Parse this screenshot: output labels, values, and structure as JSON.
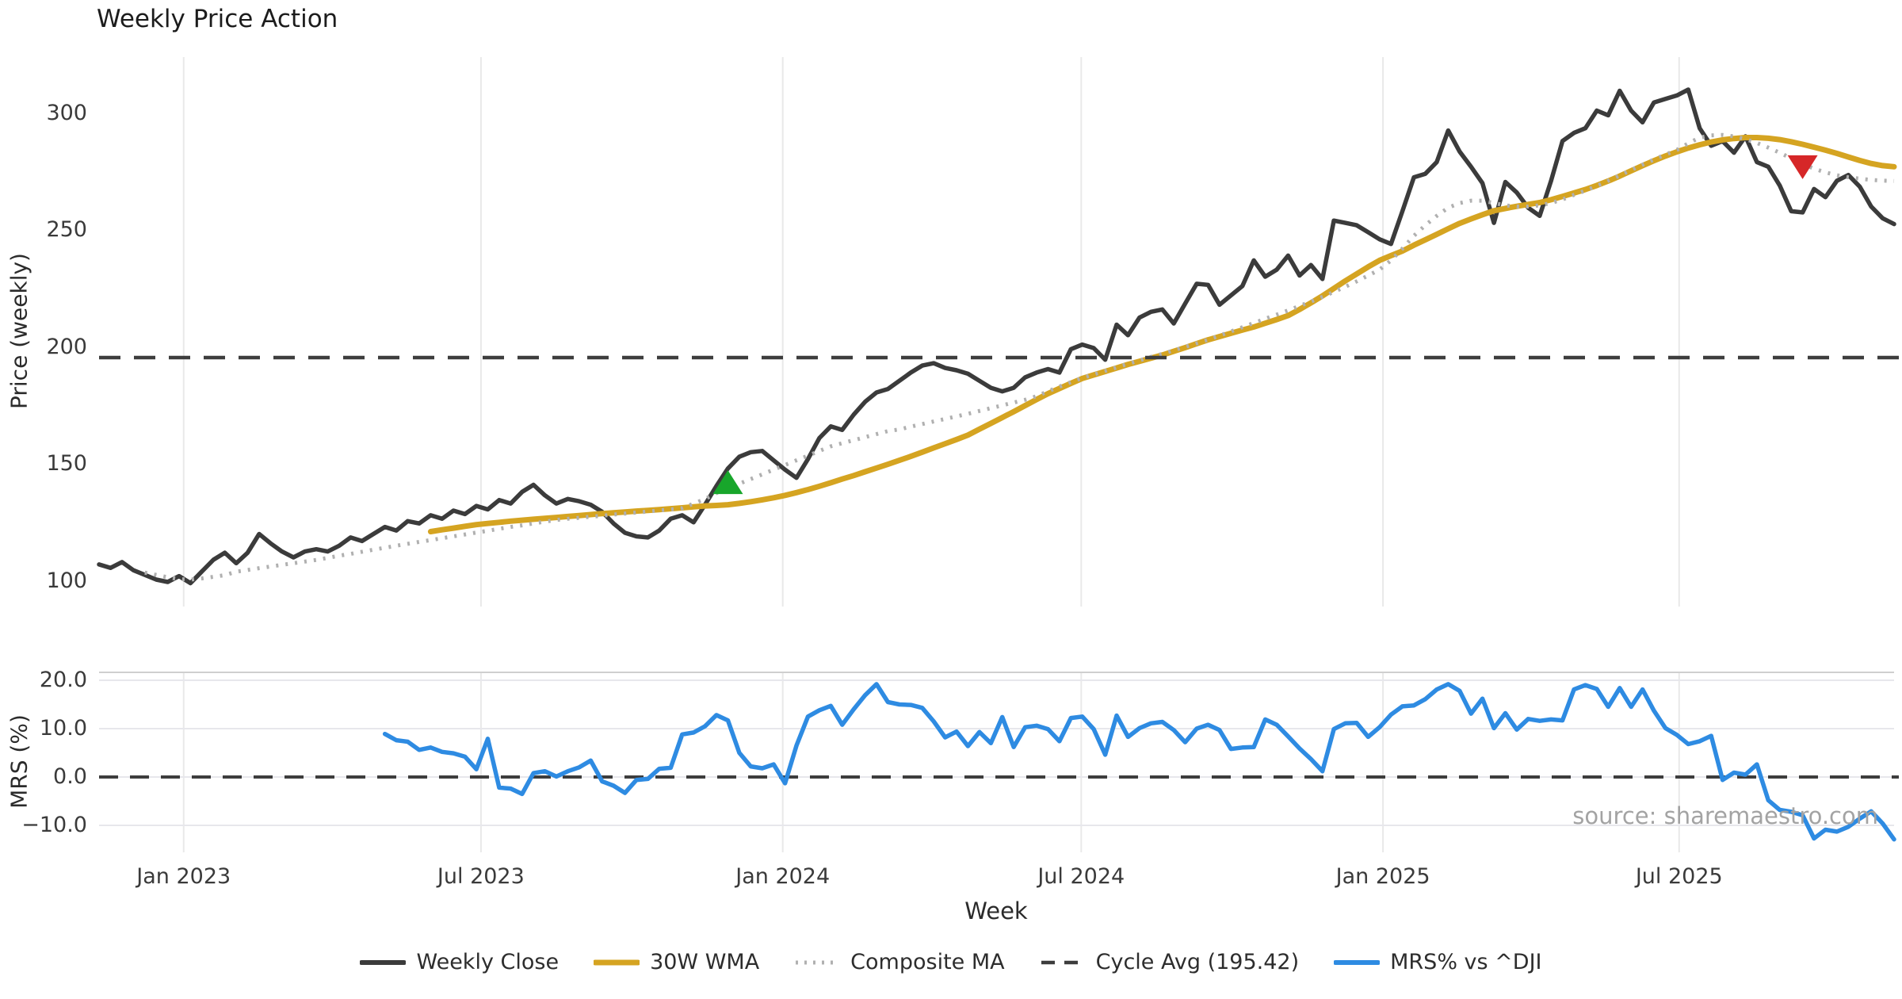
{
  "title": "Weekly Price Action",
  "source_note": "source: sharemaestro.com",
  "axes": {
    "price_ylabel": "Price (weekly)",
    "price_yticks": [
      "100",
      "150",
      "200",
      "250",
      "300"
    ],
    "mrs_ylabel": "MRS (%)",
    "mrs_yticks": [
      "−10.0",
      "0.0",
      "10.0",
      "20.0"
    ],
    "xlabel": "Week"
  },
  "legend": [
    {
      "label": "Weekly Close",
      "color": "#3b3b3b",
      "style": "solid",
      "width": 6
    },
    {
      "label": "30W WMA",
      "color": "#d5a421",
      "style": "solid",
      "width": 7
    },
    {
      "label": "Composite MA",
      "color": "#b0b0b0",
      "style": "dotted",
      "width": 5
    },
    {
      "label": "Cycle Avg (195.42)",
      "color": "#3d3d3d",
      "style": "dashed",
      "width": 4.5
    },
    {
      "label": "MRS% vs ^DJI",
      "color": "#2e8be2",
      "style": "solid",
      "width": 6
    }
  ],
  "chart_data": {
    "type": "line",
    "title": "Weekly Price Action",
    "xlabel": "Week",
    "x_unit": "week-index (0 = first plotted week, early Nov 2022)",
    "xticks": [
      {
        "label": "Jan 2023",
        "week": 7.4
      },
      {
        "label": "Jul 2023",
        "week": 33.4
      },
      {
        "label": "Jan 2024",
        "week": 59.8
      },
      {
        "label": "Jul 2024",
        "week": 85.9
      },
      {
        "label": "Jan 2025",
        "week": 112.3
      },
      {
        "label": "Jul 2025",
        "week": 138.2
      }
    ],
    "panels": [
      {
        "id": "price",
        "ylabel": "Price (weekly)",
        "yticks": [
          100,
          150,
          200,
          250,
          300
        ],
        "ylim": [
          89.5,
          323.5
        ],
        "grid": "vertical"
      },
      {
        "id": "mrs",
        "ylabel": "MRS (%)",
        "yticks": [
          -10,
          0,
          10,
          20
        ],
        "ylim": [
          -15.5,
          21.6
        ],
        "grid": "both",
        "zero_line_dashed": true
      }
    ],
    "cycle_avg": 195.42,
    "series": [
      {
        "name": "Weekly Close",
        "panel": 0,
        "color": "#3b3b3b",
        "style": "solid",
        "start_week": 0,
        "values": [
          107,
          105.5,
          108,
          104.5,
          102.5,
          100.5,
          99.5,
          102,
          99,
          104,
          109,
          112,
          107.5,
          112,
          120,
          116,
          112.5,
          110,
          112.5,
          113.5,
          112.5,
          115,
          118.5,
          117,
          120,
          123,
          121.5,
          125.5,
          124.5,
          128,
          126.5,
          130,
          128.5,
          132,
          130.5,
          134.5,
          133,
          138,
          141,
          136.5,
          133,
          135,
          134,
          132.5,
          129.5,
          124.5,
          120.5,
          119,
          118.5,
          121.5,
          126.5,
          128,
          125,
          132.5,
          140.5,
          148,
          153,
          155,
          155.5,
          151.5,
          147.5,
          144,
          152,
          161,
          166,
          164.5,
          171,
          176.5,
          180.5,
          182,
          185.5,
          189,
          192,
          193,
          191,
          190,
          188.5,
          185.5,
          182.5,
          181,
          182.5,
          187,
          189,
          190.5,
          189,
          199,
          201,
          199.5,
          194.5,
          209.5,
          205,
          212.5,
          215,
          216,
          210,
          218.5,
          227,
          226.5,
          218,
          222,
          226,
          237,
          230,
          233,
          239,
          230.5,
          235,
          229,
          254,
          253,
          252,
          249,
          246,
          244,
          258,
          272.5,
          274,
          279,
          292.5,
          283.5,
          277,
          270,
          253,
          270.5,
          266,
          259.5,
          256,
          271,
          288,
          291.5,
          293.5,
          301,
          299,
          309.5,
          301,
          296,
          304.5,
          306,
          307.5,
          310,
          293.5,
          286,
          288,
          283,
          290,
          279,
          277,
          269,
          258,
          257.5,
          267.5,
          264,
          271,
          273.5,
          268.5,
          260,
          255,
          252.5
        ]
      },
      {
        "name": "30W WMA",
        "panel": 0,
        "color": "#d5a421",
        "style": "solid",
        "start_week": 29,
        "values": [
          121,
          121.8,
          122.5,
          123.3,
          124,
          124.5,
          125,
          125.5,
          125.9,
          126.3,
          126.7,
          127.1,
          127.5,
          127.9,
          128.3,
          128.7,
          129.1,
          129.4,
          129.8,
          130.1,
          130.4,
          130.8,
          131.2,
          131.6,
          132,
          132.2,
          132.5,
          133.1,
          133.8,
          134.6,
          135.5,
          136.5,
          137.7,
          139,
          140.4,
          141.9,
          143.5,
          145,
          146.6,
          148.2,
          149.8,
          151.5,
          153.2,
          155,
          156.8,
          158.6,
          160.4,
          162.3,
          164.8,
          167.3,
          169.8,
          172.3,
          174.9,
          177.5,
          180,
          182.2,
          184.4,
          186.5,
          188,
          189.5,
          191,
          192.5,
          193.8,
          195.2,
          196.5,
          198.1,
          199.7,
          201.4,
          203,
          204.4,
          205.8,
          207.2,
          208.5,
          210.1,
          211.7,
          213.4,
          216,
          218.8,
          221.8,
          225,
          228.2,
          231.2,
          234.2,
          237,
          239,
          241,
          243.5,
          245.8,
          248.1,
          250.5,
          252.8,
          254.7,
          256.5,
          258.2,
          259.2,
          260.1,
          260.9,
          261.7,
          262.9,
          264.3,
          265.8,
          267.3,
          269,
          270.9,
          273,
          275.3,
          277.5,
          279.6,
          281.6,
          283.4,
          285,
          286.4,
          287.6,
          288.5,
          289.1,
          289.5,
          289.5,
          289.2,
          288.6,
          287.7,
          286.6,
          285.4,
          284.1,
          282.7,
          281.2,
          279.7,
          278.4,
          277.5,
          277
        ]
      },
      {
        "name": "Composite MA",
        "panel": 0,
        "color": "#b0b0b0",
        "style": "dotted",
        "start_week": 4,
        "values": [
          103.5,
          102.5,
          101.5,
          100.7,
          100.5,
          101,
          101.7,
          102.4,
          103.9,
          104.6,
          105.4,
          106.1,
          106.8,
          107.5,
          108.2,
          108.9,
          109.8,
          110.7,
          111.5,
          112.4,
          113.3,
          114.1,
          115,
          115.8,
          116.6,
          117.4,
          118.2,
          119,
          119.8,
          120.6,
          121.4,
          122.2,
          123,
          123.7,
          124.5,
          125.3,
          126,
          126.5,
          126.9,
          127.4,
          127.8,
          128.3,
          128.7,
          129.2,
          129.6,
          130.1,
          130.5,
          131,
          133,
          135,
          137.5,
          139.5,
          141.5,
          143.5,
          145.5,
          147.5,
          149.5,
          151.5,
          153.5,
          155.5,
          157.5,
          158.8,
          160.1,
          161.4,
          162.7,
          164,
          164.7,
          165.9,
          167,
          168.1,
          169.2,
          170.3,
          171.4,
          172.6,
          173.8,
          175,
          176.2,
          177.4,
          178.9,
          181,
          183,
          184.9,
          186.7,
          188.2,
          189.7,
          191.2,
          192.7,
          194.2,
          195.7,
          197,
          198.5,
          200,
          201.5,
          203,
          204.8,
          206.6,
          208.4,
          210.2,
          212,
          213.8,
          215.6,
          217.5,
          219.4,
          221.4,
          223.5,
          225.7,
          228,
          230.5,
          233,
          237,
          242,
          247.5,
          252,
          256,
          259.5,
          261.5,
          262.5,
          262.5,
          261.5,
          260.5,
          260,
          260,
          260.5,
          261.5,
          263,
          265,
          266.8,
          268.8,
          271,
          273.3,
          275.6,
          277.9,
          280.1,
          282.2,
          284.2,
          287,
          289.5,
          290.4,
          290.6,
          290,
          288.8,
          287.2,
          285.2,
          283,
          280.6,
          278.2,
          276.2,
          274.6,
          273.4,
          272.5,
          271.9,
          271.4,
          271.1,
          270.9
        ]
      },
      {
        "name": "Cycle Avg (195.42)",
        "panel": 0,
        "color": "#3d3d3d",
        "style": "dashed",
        "hline": 195.42
      },
      {
        "name": "MRS% vs ^DJI",
        "panel": 1,
        "color": "#2e8be2",
        "style": "solid",
        "start_week": 25,
        "values": [
          8.9,
          7.6,
          7.3,
          5.6,
          6.1,
          5.2,
          4.9,
          4.2,
          1.6,
          7.9,
          -2.2,
          -2.4,
          -3.5,
          0.8,
          1.2,
          0.1,
          1.2,
          2,
          3.4,
          -0.9,
          -1.8,
          -3.3,
          -0.6,
          -0.4,
          1.7,
          1.9,
          8.8,
          9.2,
          10.5,
          12.8,
          11.7,
          5,
          2.2,
          1.8,
          2.6,
          -1.3,
          6.5,
          12.5,
          13.8,
          14.7,
          10.8,
          14,
          16.9,
          19.2,
          15.5,
          15,
          14.9,
          14.3,
          11.5,
          8.2,
          9.4,
          6.4,
          9.3,
          7,
          12.4,
          6.2,
          10.3,
          10.6,
          9.9,
          7.4,
          12.2,
          12.5,
          9.9,
          4.6,
          12.7,
          8.3,
          10.1,
          11.1,
          11.4,
          9.7,
          7.2,
          10,
          10.8,
          9.7,
          5.8,
          6.1,
          6.2,
          11.9,
          10.8,
          8.4,
          5.9,
          3.7,
          1.2,
          9.9,
          11.1,
          11.2,
          8.3,
          10.3,
          12.9,
          14.6,
          14.8,
          16.1,
          18.1,
          19.2,
          17.8,
          13.1,
          16.2,
          10.1,
          13.2,
          9.8,
          12,
          11.6,
          11.9,
          11.7,
          18.1,
          19,
          18.2,
          14.5,
          18.4,
          14.5,
          18.1,
          13.7,
          10.1,
          8.7,
          6.8,
          7.4,
          8.5,
          -0.6,
          0.9,
          0.5,
          2.6,
          -4.8,
          -6.8,
          -7.2,
          -7.9,
          -12.7,
          -10.9,
          -11.3,
          -10.3,
          -8.6,
          -7.1,
          -9.6,
          -12.9
        ]
      }
    ],
    "markers": [
      {
        "shape": "triangle-up",
        "color": "#18a62b",
        "week": 55,
        "price": 141.5,
        "panel": 0
      },
      {
        "shape": "triangle-down",
        "color": "#d62728",
        "week": 149,
        "price": 277.5,
        "panel": 0
      }
    ]
  }
}
